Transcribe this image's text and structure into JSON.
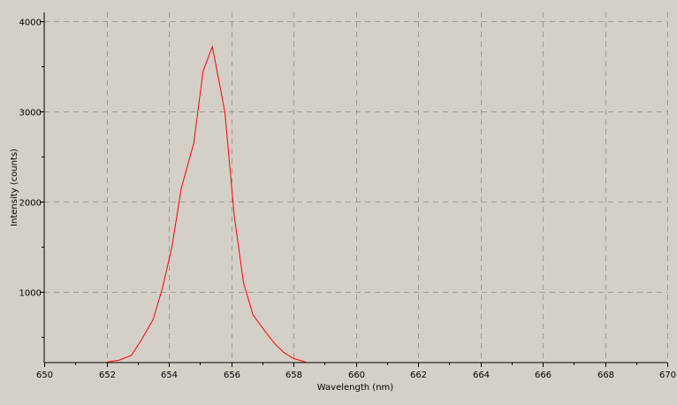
{
  "chart_data": {
    "type": "line",
    "title": "",
    "xlabel": "Wavelength (nm)",
    "ylabel": "Intensity (counts)",
    "xlim": [
      650,
      670
    ],
    "ylim": [
      220,
      4100
    ],
    "x_ticks": [
      650,
      652,
      654,
      656,
      658,
      660,
      662,
      664,
      666,
      668,
      670
    ],
    "y_ticks": [
      1000,
      2000,
      3000,
      4000
    ],
    "grid": true,
    "background_color": "#d4d0c8",
    "grid_color": "#9a9a9a",
    "series": [
      {
        "color": "#ff0000",
        "x": [
          652.0,
          652.4,
          652.8,
          653.1,
          653.5,
          653.8,
          654.1,
          654.4,
          654.8,
          655.1,
          655.4,
          655.8,
          656.1,
          656.4,
          656.7,
          657.1,
          657.4,
          657.7,
          658.0,
          658.4
        ],
        "y": [
          225,
          245,
          300,
          460,
          700,
          1050,
          1500,
          2150,
          2650,
          3450,
          3720,
          3000,
          1850,
          1100,
          750,
          560,
          430,
          330,
          265,
          225
        ]
      }
    ]
  }
}
